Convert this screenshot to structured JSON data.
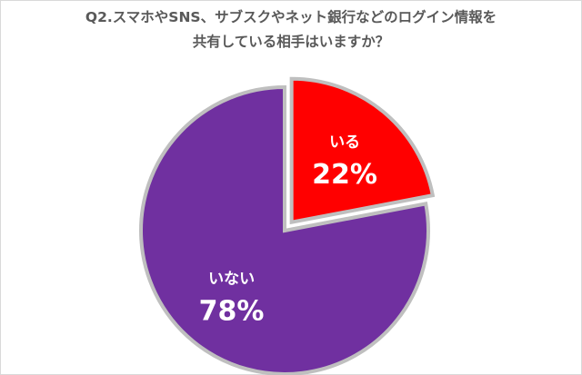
{
  "title_line1": "Q2.スマホやSNS、サブスクやネット銀行などのログイン情報を",
  "title_line2": "共有している相手はいますか？",
  "chart_data": {
    "type": "pie",
    "title": "Q2.スマホやSNS、サブスクやネット銀行などのログイン情報を共有している相手はいますか？",
    "categories": [
      "いる",
      "いない"
    ],
    "values": [
      22,
      78
    ],
    "value_labels": [
      "22%",
      "78%"
    ],
    "colors": [
      "#ff0000",
      "#7030a0"
    ],
    "exploded": [
      "いる"
    ],
    "legend": "none"
  }
}
